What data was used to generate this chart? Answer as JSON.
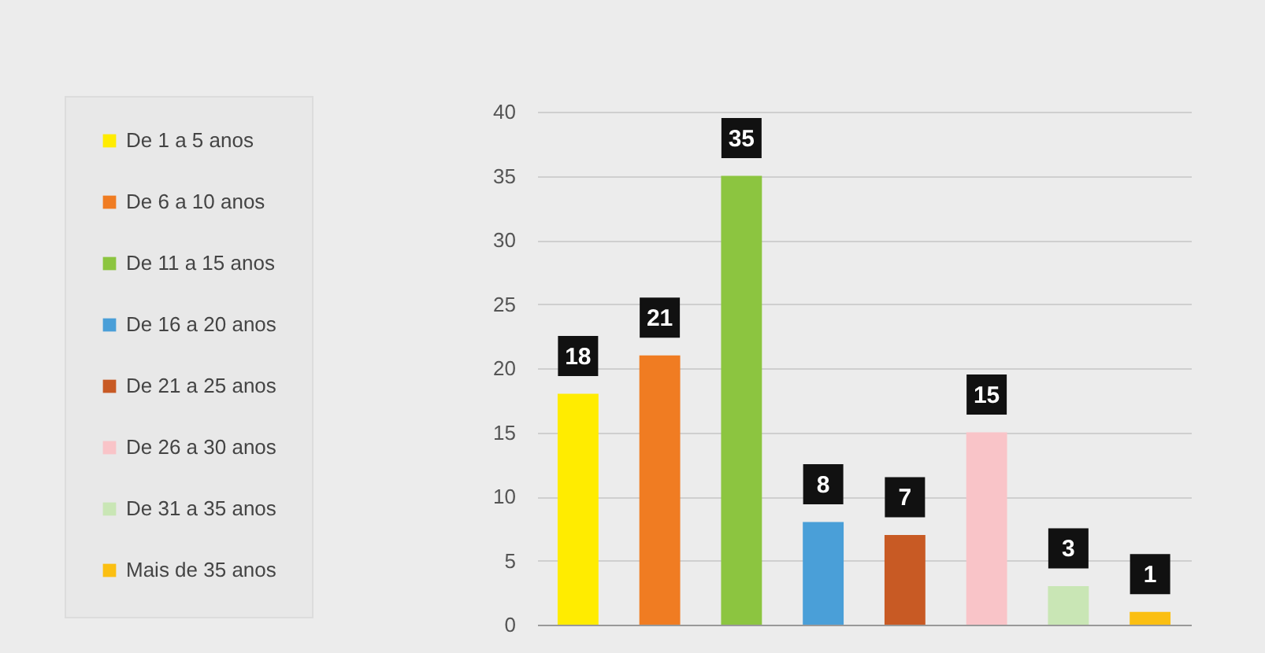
{
  "chart_data": {
    "type": "bar",
    "categories": [
      null,
      null,
      null,
      null,
      null,
      null,
      null,
      null
    ],
    "series": [
      {
        "name": "De 1 a 5 anos",
        "color": "#ffec00",
        "values": [
          18,
          null,
          null,
          null,
          null,
          null,
          null,
          null
        ]
      },
      {
        "name": "De 6 a 10 anos",
        "color": "#f07c22",
        "values": [
          null,
          21,
          null,
          null,
          null,
          null,
          null,
          null
        ]
      },
      {
        "name": "De 11 a 15 anos",
        "color": "#8cc540",
        "values": [
          null,
          null,
          35,
          null,
          null,
          null,
          null,
          null
        ]
      },
      {
        "name": "De 16 a 20 anos",
        "color": "#4a9fd8",
        "values": [
          null,
          null,
          null,
          8,
          null,
          null,
          null,
          null
        ]
      },
      {
        "name": "De 21 a 25 anos",
        "color": "#c85a24",
        "values": [
          null,
          null,
          null,
          null,
          7,
          null,
          null,
          null
        ]
      },
      {
        "name": "De 26 a 30 anos",
        "color": "#f9c4c8",
        "values": [
          null,
          null,
          null,
          null,
          null,
          15,
          null,
          null
        ]
      },
      {
        "name": "De 31 a 35 anos",
        "color": "#c9e6b5",
        "values": [
          null,
          null,
          null,
          null,
          null,
          null,
          3,
          null
        ]
      },
      {
        "name": "Mais de 35 anos",
        "color": "#fbbf12",
        "values": [
          null,
          null,
          null,
          null,
          null,
          null,
          null,
          1
        ]
      }
    ],
    "ylim": [
      0,
      40
    ],
    "yticks": [
      0,
      5,
      10,
      15,
      20,
      25,
      30,
      35,
      40
    ],
    "grid": "y",
    "legend": "left",
    "tick_labels": "y",
    "data_labels": true
  }
}
